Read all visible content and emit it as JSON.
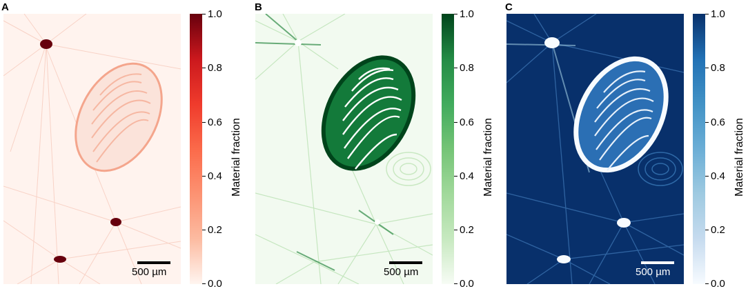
{
  "panels": [
    {
      "letter": "A",
      "scalebar_label": "500 µm",
      "colorbar_title": "Material fraction",
      "colorbar_ticks": [
        "1.0",
        "0.8",
        "0.6",
        "0.4",
        "0.2",
        "0.0"
      ],
      "colormap": "Reds",
      "colors": {
        "low": "#fff5f0",
        "mid": "#fc9272",
        "high": "#67000d"
      }
    },
    {
      "letter": "B",
      "scalebar_label": "500 µm",
      "colorbar_title": "Material fraction",
      "colorbar_ticks": [
        "1.0",
        "0.8",
        "0.6",
        "0.4",
        "0.2",
        "0.0"
      ],
      "colormap": "Greens",
      "colors": {
        "low": "#f7fcf5",
        "mid": "#74c476",
        "high": "#00441b"
      }
    },
    {
      "letter": "C",
      "scalebar_label": "500 µm",
      "colorbar_title": "Material fraction",
      "colorbar_ticks": [
        "1.0",
        "0.8",
        "0.6",
        "0.4",
        "0.2",
        "0.0"
      ],
      "colormap": "Blues",
      "colors": {
        "low": "#f7fbff",
        "mid": "#6baed6",
        "high": "#08306b"
      }
    }
  ]
}
